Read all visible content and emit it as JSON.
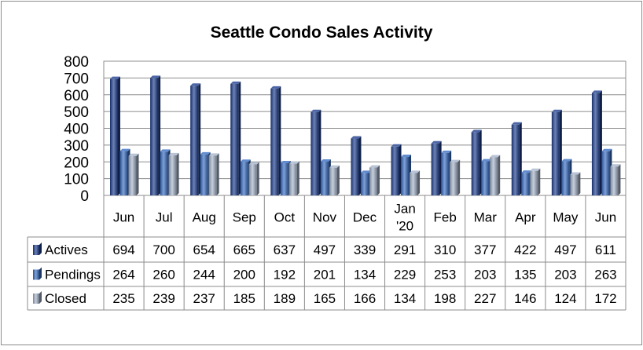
{
  "chart_data": {
    "type": "bar",
    "title": "Seattle Condo Sales Activity",
    "categories": [
      "Jun",
      "Jul",
      "Aug",
      "Sep",
      "Oct",
      "Nov",
      "Dec",
      "Jan '20",
      "Feb",
      "Mar",
      "Apr",
      "May",
      "Jun"
    ],
    "category_lines": [
      [
        "Jun"
      ],
      [
        "Jul"
      ],
      [
        "Aug"
      ],
      [
        "Sep"
      ],
      [
        "Oct"
      ],
      [
        "Nov"
      ],
      [
        "Dec"
      ],
      [
        "Jan",
        "'20"
      ],
      [
        "Feb"
      ],
      [
        "Mar"
      ],
      [
        "Apr"
      ],
      [
        "May"
      ],
      [
        "Jun"
      ]
    ],
    "series": [
      {
        "name": "Actives",
        "values": [
          694,
          700,
          654,
          665,
          637,
          497,
          339,
          291,
          310,
          377,
          422,
          497,
          611
        ],
        "color": "#1F3F8F"
      },
      {
        "name": "Pendings",
        "values": [
          264,
          260,
          244,
          200,
          192,
          201,
          134,
          229,
          253,
          203,
          135,
          203,
          263
        ],
        "color": "#3A6FC4"
      },
      {
        "name": "Closed",
        "values": [
          235,
          239,
          237,
          185,
          189,
          165,
          166,
          134,
          198,
          227,
          146,
          124,
          172
        ],
        "color": "#A7B5CC"
      }
    ],
    "ylim": [
      0,
      800
    ],
    "yticks": [
      0,
      100,
      200,
      300,
      400,
      500,
      600,
      700,
      800
    ],
    "grid": true,
    "legend": "data-table"
  }
}
